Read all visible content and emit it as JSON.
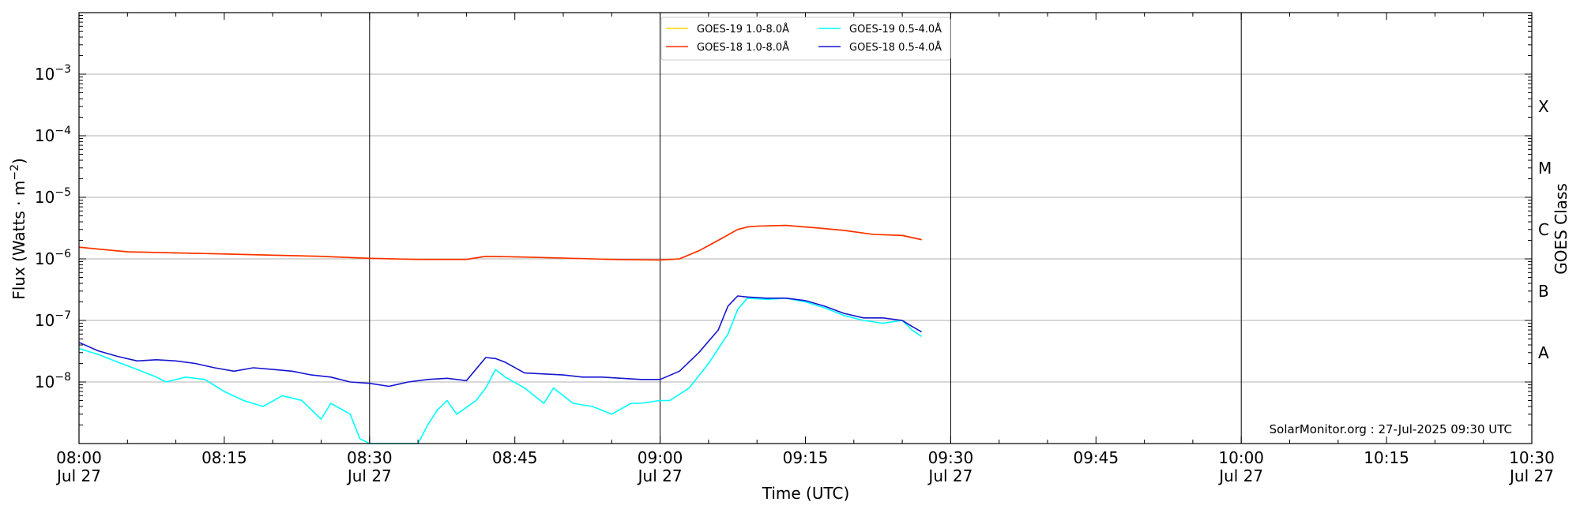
{
  "chart_data": {
    "type": "line",
    "xlabel": "Time (UTC)",
    "ylabel": "Flux (Watts · m",
    "ylabel_superscript": "−2",
    "ylabel_suffix": ")",
    "right_axis_label": "GOES Class",
    "y_scale": "log",
    "ylim": [
      1e-09,
      0.01
    ],
    "xlim": [
      "2025-07-27T08:00",
      "2025-07-27T10:30"
    ],
    "grid": "horizontal",
    "legend_placement": "top-center",
    "credit": "SolarMonitor.org : 27-Jul-2025 09:30 UTC",
    "x_ticks": [
      {
        "t": "2025-07-27T08:00",
        "line1": "08:00",
        "line2": "Jul 27"
      },
      {
        "t": "2025-07-27T08:15",
        "line1": "08:15",
        "line2": ""
      },
      {
        "t": "2025-07-27T08:30",
        "line1": "08:30",
        "line2": "Jul 27"
      },
      {
        "t": "2025-07-27T08:45",
        "line1": "08:45",
        "line2": ""
      },
      {
        "t": "2025-07-27T09:00",
        "line1": "09:00",
        "line2": "Jul 27"
      },
      {
        "t": "2025-07-27T09:15",
        "line1": "09:15",
        "line2": ""
      },
      {
        "t": "2025-07-27T09:30",
        "line1": "09:30",
        "line2": "Jul 27"
      },
      {
        "t": "2025-07-27T09:45",
        "line1": "09:45",
        "line2": ""
      },
      {
        "t": "2025-07-27T10:00",
        "line1": "10:00",
        "line2": "Jul 27"
      },
      {
        "t": "2025-07-27T10:15",
        "line1": "10:15",
        "line2": ""
      },
      {
        "t": "2025-07-27T10:30",
        "line1": "10:30",
        "line2": "Jul 27"
      }
    ],
    "vertical_lines": [
      "2025-07-27T08:00",
      "2025-07-27T08:30",
      "2025-07-27T09:00",
      "2025-07-27T09:30",
      "2025-07-27T10:00"
    ],
    "y_ticks": [
      {
        "value": 1e-08,
        "base": "10",
        "exp": "−8"
      },
      {
        "value": 1e-07,
        "base": "10",
        "exp": "−7"
      },
      {
        "value": 1e-06,
        "base": "10",
        "exp": "−6"
      },
      {
        "value": 1e-05,
        "base": "10",
        "exp": "−5"
      },
      {
        "value": 0.0001,
        "base": "10",
        "exp": "−4"
      },
      {
        "value": 0.001,
        "base": "10",
        "exp": "−3"
      }
    ],
    "goes_classes": [
      {
        "label": "A",
        "value": 3e-08
      },
      {
        "label": "B",
        "value": 3e-07
      },
      {
        "label": "C",
        "value": 3e-06
      },
      {
        "label": "M",
        "value": 3e-05
      },
      {
        "label": "X",
        "value": 0.0003
      }
    ],
    "series": [
      {
        "name": "GOES-19 1.0-8.0Å",
        "color": "#ffd700",
        "x": [
          "2025-07-27T08:00",
          "2025-07-27T08:05",
          "2025-07-27T08:10",
          "2025-07-27T08:15",
          "2025-07-27T08:20",
          "2025-07-27T08:25",
          "2025-07-27T08:30",
          "2025-07-27T08:35",
          "2025-07-27T08:40",
          "2025-07-27T08:42",
          "2025-07-27T08:45",
          "2025-07-27T08:50",
          "2025-07-27T08:55",
          "2025-07-27T09:00",
          "2025-07-27T09:02",
          "2025-07-27T09:04",
          "2025-07-27T09:06",
          "2025-07-27T09:08",
          "2025-07-27T09:09",
          "2025-07-27T09:10",
          "2025-07-27T09:13",
          "2025-07-27T09:16",
          "2025-07-27T09:19",
          "2025-07-27T09:22",
          "2025-07-27T09:25",
          "2025-07-27T09:27"
        ],
        "y": [
          1.55e-06,
          1.3e-06,
          1.25e-06,
          1.2e-06,
          1.15e-06,
          1.1e-06,
          1.02e-06,
          9.8e-07,
          9.8e-07,
          1.1e-06,
          1.08e-06,
          1.03e-06,
          9.8e-07,
          9.6e-07,
          1e-06,
          1.35e-06,
          2e-06,
          3e-06,
          3.3e-06,
          3.4e-06,
          3.5e-06,
          3.2e-06,
          2.9e-06,
          2.5e-06,
          2.4e-06,
          2.05e-06
        ]
      },
      {
        "name": "GOES-18 1.0-8.0Å",
        "color": "#ff2a00",
        "x": [
          "2025-07-27T08:00",
          "2025-07-27T08:05",
          "2025-07-27T08:10",
          "2025-07-27T08:15",
          "2025-07-27T08:20",
          "2025-07-27T08:25",
          "2025-07-27T08:30",
          "2025-07-27T08:35",
          "2025-07-27T08:40",
          "2025-07-27T08:42",
          "2025-07-27T08:45",
          "2025-07-27T08:50",
          "2025-07-27T08:55",
          "2025-07-27T09:00",
          "2025-07-27T09:02",
          "2025-07-27T09:04",
          "2025-07-27T09:06",
          "2025-07-27T09:08",
          "2025-07-27T09:09",
          "2025-07-27T09:10",
          "2025-07-27T09:13",
          "2025-07-27T09:16",
          "2025-07-27T09:19",
          "2025-07-27T09:22",
          "2025-07-27T09:25",
          "2025-07-27T09:27"
        ],
        "y": [
          1.55e-06,
          1.3e-06,
          1.25e-06,
          1.2e-06,
          1.15e-06,
          1.1e-06,
          1.02e-06,
          9.8e-07,
          9.8e-07,
          1.1e-06,
          1.08e-06,
          1.03e-06,
          9.8e-07,
          9.6e-07,
          1e-06,
          1.35e-06,
          2e-06,
          3e-06,
          3.3e-06,
          3.4e-06,
          3.5e-06,
          3.2e-06,
          2.9e-06,
          2.5e-06,
          2.4e-06,
          2.05e-06
        ]
      },
      {
        "name": "GOES-19 0.5-4.0Å",
        "color": "#00ffff",
        "x": [
          "2025-07-27T08:00",
          "2025-07-27T08:02",
          "2025-07-27T08:04",
          "2025-07-27T08:06",
          "2025-07-27T08:08",
          "2025-07-27T08:09",
          "2025-07-27T08:11",
          "2025-07-27T08:13",
          "2025-07-27T08:15",
          "2025-07-27T08:17",
          "2025-07-27T08:19",
          "2025-07-27T08:21",
          "2025-07-27T08:23",
          "2025-07-27T08:25",
          "2025-07-27T08:26",
          "2025-07-27T08:28",
          "2025-07-27T08:29",
          "2025-07-27T08:30",
          "2025-07-27T08:35",
          "2025-07-27T08:36",
          "2025-07-27T08:37",
          "2025-07-27T08:38",
          "2025-07-27T08:39",
          "2025-07-27T08:41",
          "2025-07-27T08:42",
          "2025-07-27T08:43",
          "2025-07-27T08:44",
          "2025-07-27T08:46",
          "2025-07-27T08:48",
          "2025-07-27T08:49",
          "2025-07-27T08:51",
          "2025-07-27T08:53",
          "2025-07-27T08:55",
          "2025-07-27T08:57",
          "2025-07-27T08:58",
          "2025-07-27T09:00",
          "2025-07-27T09:01",
          "2025-07-27T09:03",
          "2025-07-27T09:05",
          "2025-07-27T09:07",
          "2025-07-27T09:08",
          "2025-07-27T09:09",
          "2025-07-27T09:11",
          "2025-07-27T09:13",
          "2025-07-27T09:15",
          "2025-07-27T09:17",
          "2025-07-27T09:19",
          "2025-07-27T09:21",
          "2025-07-27T09:23",
          "2025-07-27T09:25",
          "2025-07-27T09:26",
          "2025-07-27T09:27"
        ],
        "y": [
          3.5e-08,
          2.8e-08,
          2.1e-08,
          1.6e-08,
          1.2e-08,
          1e-08,
          1.2e-08,
          1.1e-08,
          7e-09,
          5e-09,
          4e-09,
          6e-09,
          5e-09,
          2.5e-09,
          4.5e-09,
          3e-09,
          1.2e-09,
          8e-10,
          8e-10,
          2e-09,
          3.5e-09,
          5e-09,
          3e-09,
          5e-09,
          8e-09,
          1.6e-08,
          1.2e-08,
          8e-09,
          4.5e-09,
          8e-09,
          4.5e-09,
          4e-09,
          3e-09,
          4.5e-09,
          4.5e-09,
          5e-09,
          5e-09,
          8e-09,
          2e-08,
          6e-08,
          1.5e-07,
          2.3e-07,
          2.2e-07,
          2.3e-07,
          2e-07,
          1.6e-07,
          1.2e-07,
          1e-07,
          9e-08,
          1e-07,
          7e-08,
          5.5e-08
        ]
      },
      {
        "name": "GOES-18 0.5-4.0Å",
        "color": "#1515d0",
        "x": [
          "2025-07-27T08:00",
          "2025-07-27T08:02",
          "2025-07-27T08:04",
          "2025-07-27T08:06",
          "2025-07-27T08:08",
          "2025-07-27T08:10",
          "2025-07-27T08:12",
          "2025-07-27T08:14",
          "2025-07-27T08:16",
          "2025-07-27T08:18",
          "2025-07-27T08:20",
          "2025-07-27T08:22",
          "2025-07-27T08:24",
          "2025-07-27T08:26",
          "2025-07-27T08:28",
          "2025-07-27T08:30",
          "2025-07-27T08:32",
          "2025-07-27T08:34",
          "2025-07-27T08:36",
          "2025-07-27T08:38",
          "2025-07-27T08:40",
          "2025-07-27T08:42",
          "2025-07-27T08:43",
          "2025-07-27T08:44",
          "2025-07-27T08:46",
          "2025-07-27T08:48",
          "2025-07-27T08:50",
          "2025-07-27T08:52",
          "2025-07-27T08:54",
          "2025-07-27T08:56",
          "2025-07-27T08:58",
          "2025-07-27T09:00",
          "2025-07-27T09:02",
          "2025-07-27T09:04",
          "2025-07-27T09:06",
          "2025-07-27T09:07",
          "2025-07-27T09:08",
          "2025-07-27T09:09",
          "2025-07-27T09:11",
          "2025-07-27T09:13",
          "2025-07-27T09:15",
          "2025-07-27T09:17",
          "2025-07-27T09:19",
          "2025-07-27T09:21",
          "2025-07-27T09:23",
          "2025-07-27T09:25",
          "2025-07-27T09:26",
          "2025-07-27T09:27"
        ],
        "y": [
          4.4e-08,
          3.2e-08,
          2.6e-08,
          2.2e-08,
          2.3e-08,
          2.2e-08,
          2e-08,
          1.7e-08,
          1.5e-08,
          1.7e-08,
          1.6e-08,
          1.5e-08,
          1.3e-08,
          1.2e-08,
          1e-08,
          9.5e-09,
          8.5e-09,
          1e-08,
          1.1e-08,
          1.15e-08,
          1.05e-08,
          2.5e-08,
          2.4e-08,
          2.1e-08,
          1.4e-08,
          1.35e-08,
          1.3e-08,
          1.2e-08,
          1.2e-08,
          1.15e-08,
          1.1e-08,
          1.1e-08,
          1.5e-08,
          3e-08,
          7e-08,
          1.7e-07,
          2.5e-07,
          2.4e-07,
          2.3e-07,
          2.3e-07,
          2.1e-07,
          1.7e-07,
          1.3e-07,
          1.1e-07,
          1.1e-07,
          1e-07,
          8e-08,
          6.5e-08
        ]
      }
    ]
  }
}
